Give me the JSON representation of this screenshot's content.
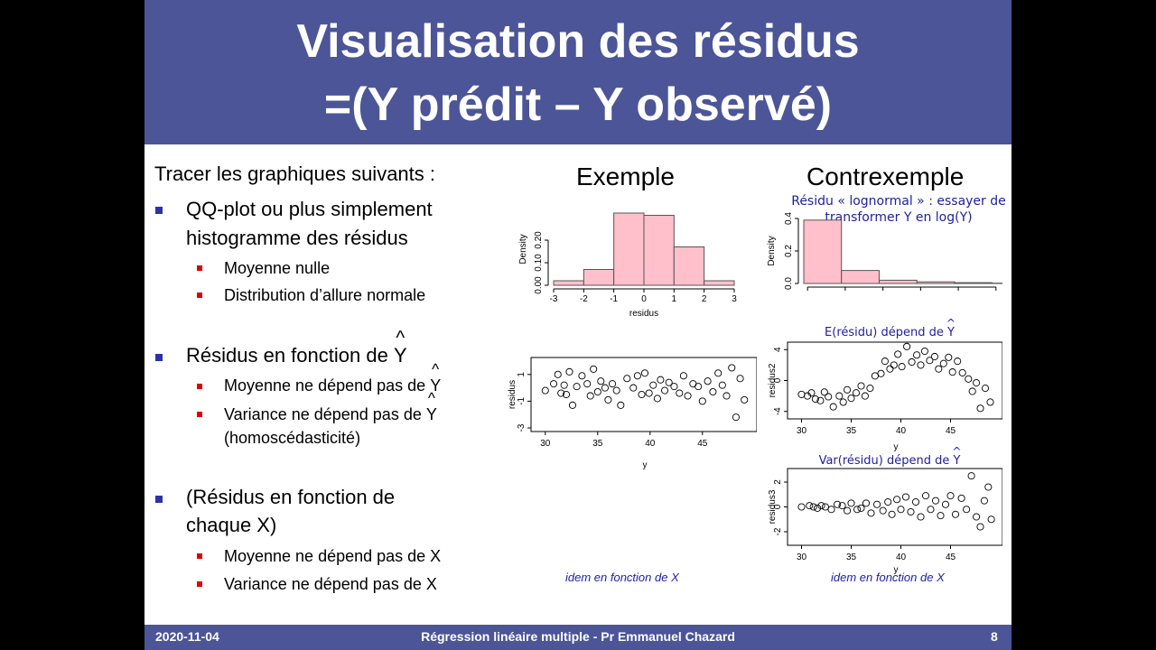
{
  "title": {
    "line1": "Visualisation des résidus",
    "line2": "=(Y prédit – Y observé)"
  },
  "left": {
    "intro": "Tracer les graphiques suivants :",
    "b1": {
      "line1": "QQ-plot ou plus simplement",
      "line2": "histogramme des résidus"
    },
    "b1_sub": [
      "Moyenne nulle",
      "Distribution d’allure normale"
    ],
    "b2": {
      "prefix": "Résidus en fonction de ",
      "var": "Y"
    },
    "b2_sub1": {
      "prefix": "Moyenne ne dépend pas de ",
      "var": "Y"
    },
    "b2_sub2": {
      "prefix": "Variance ne dépend pas de ",
      "var": "Y",
      "line2": "(homoscédasticité)"
    },
    "b3": {
      "line1": "(Résidus en fonction de",
      "line2": "chaque X)"
    },
    "b3_sub": [
      "Moyenne ne dépend pas de X",
      "Variance ne dépend pas de X"
    ]
  },
  "exemple": {
    "heading": "Exemple",
    "note": "idem en fonction de X"
  },
  "contre": {
    "heading": "Contrexemple",
    "note_lognormal": {
      "line1": "Résidu « lognormal » : essayer de",
      "line2": "transformer Y en log(Y)"
    },
    "note_mean": {
      "prefix": "E(résidu) dépend de ",
      "var": "Y"
    },
    "note_var": {
      "prefix": "Var(résidu) dépend de ",
      "var": "Y"
    },
    "note": "idem en fonction de X"
  },
  "footer": {
    "date": "2020-11-04",
    "center": "Régression linéaire multiple - Pr Emmanuel Chazard",
    "page": "8"
  },
  "colors": {
    "bar_fill": "#ffc0cb",
    "title_bg": "#4b5597",
    "note": "#1e1ea0"
  },
  "chart_data": [
    {
      "type": "bar",
      "id": "hist-exemple",
      "x": [
        -3,
        -2,
        -1,
        0,
        1,
        2
      ],
      "bin_width": 1,
      "values": [
        0.02,
        0.07,
        0.32,
        0.31,
        0.17,
        0.02
      ],
      "xlabel": "residus",
      "ylabel": "Density",
      "xticks": [
        "-3",
        "-2",
        "-1",
        "0",
        "1",
        "2",
        "3"
      ],
      "yticks": [
        "0.00",
        "0.10",
        "0.20"
      ],
      "xlim": [
        -3,
        3
      ],
      "ylim": [
        0,
        0.32
      ]
    },
    {
      "type": "scatter",
      "id": "scatter-exemple",
      "x": [
        30,
        30.8,
        31.2,
        31.5,
        31.8,
        32.0,
        32.3,
        32.6,
        33.0,
        33.5,
        34.0,
        34.3,
        34.6,
        35.0,
        35.3,
        35.7,
        36.0,
        36.4,
        36.8,
        37.2,
        37.8,
        38.4,
        38.8,
        39.2,
        39.5,
        39.9,
        40.3,
        40.7,
        41.0,
        41.4,
        41.8,
        42.3,
        42.8,
        43.2,
        43.6,
        44.1,
        44.6,
        45.0,
        45.5,
        46.0,
        46.5,
        46.9,
        47.3,
        47.8,
        48.2,
        48.6,
        49.0
      ],
      "y": [
        -0.2,
        0.3,
        1.0,
        -0.4,
        0.2,
        -0.5,
        1.2,
        -1.3,
        0.1,
        0.9,
        0.3,
        -0.6,
        1.4,
        -0.3,
        0.5,
        0.0,
        -0.9,
        0.3,
        -0.2,
        -1.3,
        0.7,
        0.0,
        0.9,
        -0.5,
        1.1,
        -0.4,
        0.2,
        -0.8,
        0.6,
        -0.2,
        0.4,
        0.1,
        -0.4,
        0.9,
        -0.6,
        0.3,
        0.1,
        -1.0,
        0.5,
        -0.3,
        1.1,
        0.2,
        -0.6,
        1.5,
        -2.2,
        0.7,
        -0.9
      ],
      "xlabel": "y",
      "ylabel": "residus",
      "xticks": [
        "30",
        "35",
        "40",
        "45"
      ],
      "yticks": [
        "-3",
        "-1",
        "1"
      ],
      "xlim": [
        29.5,
        49.5
      ],
      "ylim": [
        -3,
        2
      ]
    },
    {
      "type": "bar",
      "id": "hist-contre",
      "x": [
        0,
        1,
        2,
        3,
        4,
        5
      ],
      "bin_width": 1,
      "values": [
        0.39,
        0.08,
        0.02,
        0.01,
        0.005,
        0.002
      ],
      "xlabel": "",
      "ylabel": "Density",
      "yticks": [
        "0.0",
        "0.2",
        "0.4"
      ],
      "xlim": [
        0,
        5.2
      ],
      "ylim": [
        0,
        0.4
      ]
    },
    {
      "type": "scatter",
      "id": "scatter-contre-mean",
      "x": [
        30,
        30.6,
        31.0,
        31.4,
        31.9,
        32.3,
        32.7,
        33.2,
        33.8,
        34.2,
        34.6,
        35.0,
        35.5,
        36.0,
        36.4,
        36.9,
        37.4,
        38.0,
        38.4,
        38.9,
        39.3,
        39.7,
        40.1,
        40.6,
        41.1,
        41.6,
        42.0,
        42.4,
        42.9,
        43.4,
        43.8,
        44.3,
        44.8,
        45.2,
        45.7,
        46.2,
        46.8,
        47.2,
        47.6,
        48.0,
        48.5,
        49.0
      ],
      "y": [
        -1.8,
        -2.0,
        -1.6,
        -2.4,
        -2.6,
        -1.5,
        -2.1,
        -3.4,
        -2.0,
        -2.8,
        -1.2,
        -2.3,
        -1.6,
        -0.7,
        -2.0,
        -1.0,
        0.6,
        0.9,
        2.5,
        1.5,
        2.0,
        3.4,
        1.8,
        4.4,
        2.4,
        3.3,
        2.0,
        3.8,
        2.6,
        3.1,
        1.5,
        2.2,
        3.0,
        1.1,
        2.5,
        1.0,
        0.2,
        -1.4,
        -0.3,
        -3.6,
        -1.0,
        -2.8
      ],
      "xlabel": "y",
      "ylabel": "residus2",
      "xticks": [
        "30",
        "35",
        "40",
        "45"
      ],
      "yticks": [
        "-4",
        "0",
        "4"
      ],
      "xlim": [
        29.5,
        49.5
      ],
      "ylim": [
        -4.5,
        4.5
      ]
    },
    {
      "type": "scatter",
      "id": "scatter-contre-var",
      "x": [
        30,
        30.8,
        31.2,
        31.6,
        32.0,
        32.4,
        33.0,
        33.6,
        34.1,
        34.6,
        35.0,
        35.6,
        36.0,
        36.5,
        37.0,
        37.6,
        38.2,
        38.7,
        39.1,
        39.6,
        40.0,
        40.5,
        41.0,
        41.5,
        42.0,
        42.5,
        43.0,
        43.5,
        44.0,
        44.5,
        45.0,
        45.5,
        46.1,
        46.6,
        47.1,
        47.6,
        48.0,
        48.4,
        48.8,
        49.1
      ],
      "y": [
        0.0,
        0.1,
        0.0,
        -0.1,
        0.1,
        0.0,
        -0.2,
        0.2,
        0.1,
        -0.3,
        0.3,
        -0.2,
        -0.1,
        0.3,
        -0.5,
        0.2,
        -0.3,
        0.4,
        -0.6,
        0.6,
        -0.2,
        0.8,
        -0.4,
        0.4,
        -0.8,
        0.9,
        -0.2,
        0.5,
        -0.7,
        0.2,
        0.9,
        -0.6,
        0.7,
        -0.2,
        2.5,
        -0.8,
        -1.6,
        0.5,
        1.6,
        -1.0
      ],
      "xlabel": "y",
      "ylabel": "residus3",
      "xticks": [
        "30",
        "35",
        "40",
        "45"
      ],
      "yticks": [
        "-2",
        "0",
        "2"
      ],
      "xlim": [
        29.5,
        49.5
      ],
      "ylim": [
        -2.8,
        2.8
      ]
    }
  ]
}
